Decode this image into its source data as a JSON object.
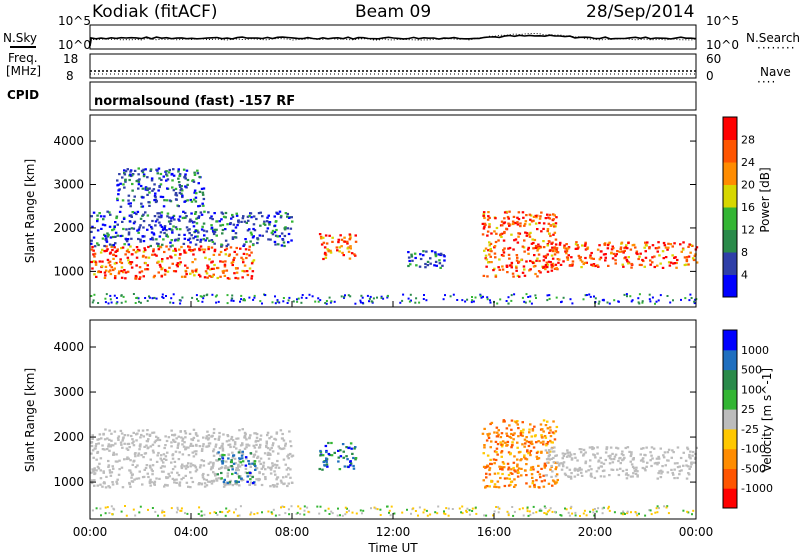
{
  "header": {
    "station": "Kodiak (fitACF)",
    "beam": "Beam 09",
    "date": "28/Sep/2014"
  },
  "left_labels": {
    "nsky": "N.Sky",
    "freq": "Freq.",
    "freq_unit": "[MHz]",
    "cpid": "CPID"
  },
  "right_labels": {
    "nsearch": "N.Search",
    "nave": "Nave"
  },
  "noise_axis": {
    "left_ticks": [
      "10^5",
      "10^0"
    ],
    "right_ticks": [
      "10^5",
      "10^0"
    ]
  },
  "freq_axis": {
    "left_ticks": [
      "18",
      "8"
    ],
    "right_ticks": [
      "60",
      "0"
    ]
  },
  "cpid_text": "normalsound (fast) -157 RF",
  "colors": {
    "power": [
      "#0000ff",
      "#2f3fa8",
      "#2a8a4a",
      "#33b533",
      "#d7d700",
      "#ff8c00",
      "#ff5500",
      "#ff0000"
    ],
    "velocity": [
      "#ff0000",
      "#ff5500",
      "#ff8c00",
      "#ffc800",
      "#bcbcbc",
      "#33b533",
      "#2a8a4a",
      "#1f6fbf",
      "#0000ff"
    ]
  },
  "chart_data": [
    {
      "type": "heatmap",
      "title": "Power",
      "xlabel": "Time UT",
      "ylabel": "Slant Range [km]",
      "xlim": [
        "00:00",
        "24:00"
      ],
      "ylim": [
        180,
        4600
      ],
      "x_ticks": [
        "00:00",
        "04:00",
        "08:00",
        "12:00",
        "16:00",
        "20:00",
        "00:00"
      ],
      "y_ticks": [
        "1000",
        "2000",
        "3000",
        "4000"
      ],
      "colorbar": {
        "label": "Power [dB]",
        "ticks": [
          "28",
          "24",
          "20",
          "16",
          "12",
          "8",
          "4"
        ]
      },
      "regions": [
        {
          "t0": 0.0,
          "t1": 6.5,
          "r0": 850,
          "r1": 1600,
          "level": "high"
        },
        {
          "t0": 0.0,
          "t1": 8.0,
          "r0": 1600,
          "r1": 2400,
          "level": "mid"
        },
        {
          "t0": 1.0,
          "t1": 4.5,
          "r0": 2500,
          "r1": 3400,
          "level": "mid"
        },
        {
          "t0": 9.0,
          "t1": 10.5,
          "r0": 1300,
          "r1": 1900,
          "level": "high"
        },
        {
          "t0": 12.5,
          "t1": 14.0,
          "r0": 1100,
          "r1": 1500,
          "level": "mid"
        },
        {
          "t0": 15.5,
          "t1": 18.5,
          "r0": 900,
          "r1": 2400,
          "level": "high"
        },
        {
          "t0": 18.0,
          "t1": 24.0,
          "r0": 1100,
          "r1": 1700,
          "level": "high"
        }
      ]
    },
    {
      "type": "heatmap",
      "title": "Velocity",
      "xlabel": "Time UT",
      "ylabel": "Slant Range [km]",
      "xlim": [
        "00:00",
        "24:00"
      ],
      "ylim": [
        180,
        4600
      ],
      "x_ticks": [
        "00:00",
        "04:00",
        "08:00",
        "12:00",
        "16:00",
        "20:00",
        "00:00"
      ],
      "y_ticks": [
        "1000",
        "2000",
        "3000",
        "4000"
      ],
      "colorbar": {
        "label": "Velocity [m s^-1]",
        "ticks": [
          "1000",
          "500",
          "100",
          "25",
          "-25",
          "-100",
          "-500",
          "-1000"
        ]
      },
      "regions": [
        {
          "t0": 0.0,
          "t1": 8.0,
          "r0": 900,
          "r1": 2200,
          "level": "ground"
        },
        {
          "t0": 5.0,
          "t1": 6.5,
          "r0": 1000,
          "r1": 1700,
          "level": "positive"
        },
        {
          "t0": 9.0,
          "t1": 10.5,
          "r0": 1300,
          "r1": 1900,
          "level": "positive"
        },
        {
          "t0": 15.5,
          "t1": 18.5,
          "r0": 900,
          "r1": 2400,
          "level": "negative"
        },
        {
          "t0": 18.0,
          "t1": 24.0,
          "r0": 1100,
          "r1": 1800,
          "level": "ground"
        }
      ]
    }
  ]
}
